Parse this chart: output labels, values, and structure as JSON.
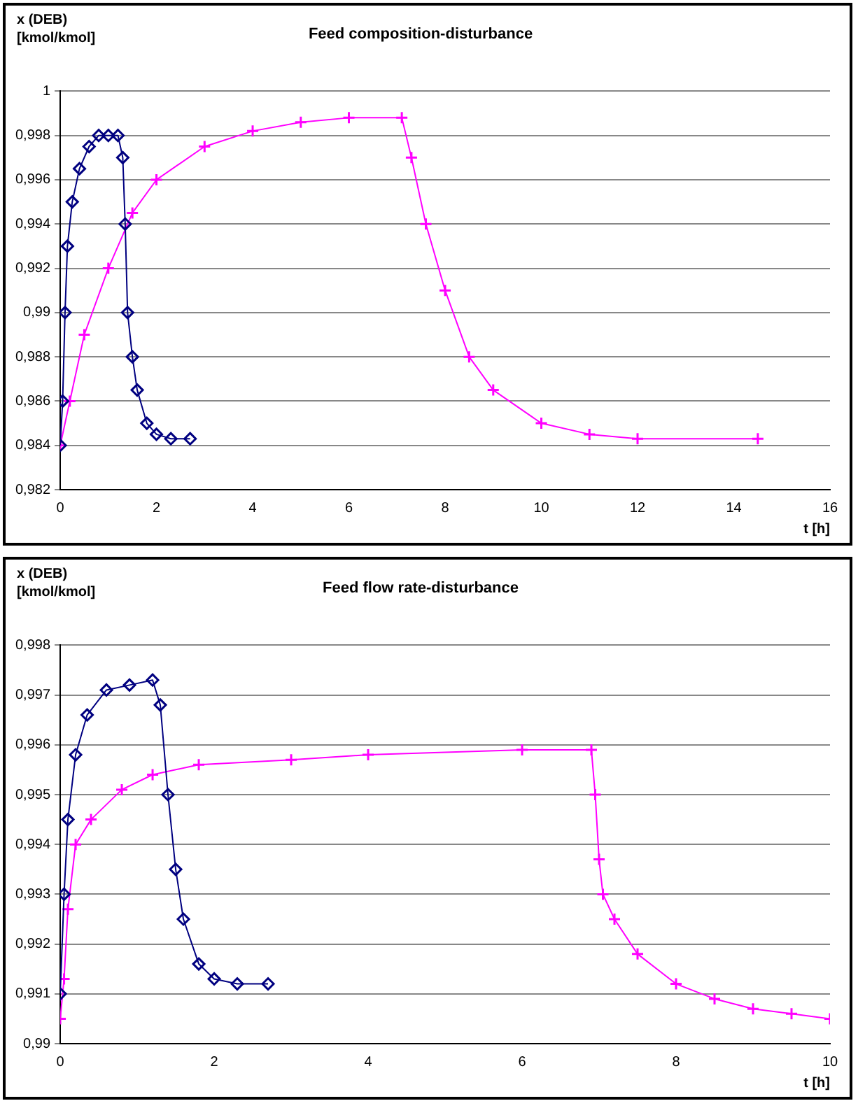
{
  "chart_data": [
    {
      "type": "line",
      "title": "Feed composition-disturbance",
      "ylabel": "x (DEB) [kmol/kmol]",
      "xlabel": "t [h]",
      "grid": "y",
      "line_style": "solid",
      "xlim": [
        0,
        16
      ],
      "xticks": [
        0,
        2,
        4,
        6,
        8,
        10,
        12,
        14,
        16
      ],
      "ylim": [
        0.982,
        1
      ],
      "yticks": [
        {
          "value": 0.982,
          "label": "0,982"
        },
        {
          "value": 0.984,
          "label": "0,984"
        },
        {
          "value": 0.986,
          "label": "0,986"
        },
        {
          "value": 0.988,
          "label": "0,988"
        },
        {
          "value": 0.99,
          "label": "0,99"
        },
        {
          "value": 0.992,
          "label": "0,992"
        },
        {
          "value": 0.994,
          "label": "0,994"
        },
        {
          "value": 0.996,
          "label": "0,996"
        },
        {
          "value": 0.998,
          "label": "0,998"
        },
        1
      ],
      "series": [
        {
          "color": "#000080",
          "marker": "diamond",
          "x": [
            0,
            0.05,
            0.1,
            0.15,
            0.25,
            0.4,
            0.6,
            0.8,
            1.0,
            1.2,
            1.3,
            1.35,
            1.4,
            1.5,
            1.6,
            1.8,
            2.0,
            2.3,
            2.7
          ],
          "values": [
            0.984,
            0.986,
            0.99,
            0.993,
            0.995,
            0.9965,
            0.9975,
            0.998,
            0.998,
            0.998,
            0.997,
            0.994,
            0.99,
            0.988,
            0.9865,
            0.985,
            0.9845,
            0.9843,
            0.9843
          ]
        },
        {
          "color": "#ff00ff",
          "marker": "cross",
          "x": [
            0,
            0.2,
            0.5,
            1,
            1.5,
            2,
            3,
            4,
            5,
            6,
            7.1,
            7.3,
            7.6,
            8,
            8.5,
            9,
            10,
            11,
            12,
            14.5
          ],
          "values": [
            0.984,
            0.986,
            0.989,
            0.992,
            0.9945,
            0.996,
            0.9975,
            0.9982,
            0.9986,
            0.9988,
            0.9988,
            0.997,
            0.994,
            0.991,
            0.988,
            0.9865,
            0.985,
            0.9845,
            0.9843,
            0.9843
          ]
        }
      ]
    },
    {
      "type": "line",
      "title": "Feed flow rate-disturbance",
      "ylabel": "x (DEB) [kmol/kmol]",
      "xlabel": "t [h]",
      "grid": "y",
      "line_style": "solid",
      "xlim": [
        0,
        10
      ],
      "xticks": [
        0,
        2,
        4,
        6,
        8,
        10
      ],
      "ylim": [
        0.99,
        0.998
      ],
      "yticks": [
        {
          "value": 0.99,
          "label": "0,99"
        },
        {
          "value": 0.991,
          "label": "0,991"
        },
        {
          "value": 0.992,
          "label": "0,992"
        },
        {
          "value": 0.993,
          "label": "0,993"
        },
        {
          "value": 0.994,
          "label": "0,994"
        },
        {
          "value": 0.995,
          "label": "0,995"
        },
        {
          "value": 0.996,
          "label": "0,996"
        },
        {
          "value": 0.997,
          "label": "0,997"
        },
        {
          "value": 0.998,
          "label": "0,998"
        }
      ],
      "series": [
        {
          "color": "#000080",
          "marker": "diamond",
          "x": [
            0,
            0.05,
            0.1,
            0.2,
            0.35,
            0.6,
            0.9,
            1.2,
            1.3,
            1.4,
            1.5,
            1.6,
            1.8,
            2.0,
            2.3,
            2.7
          ],
          "values": [
            0.991,
            0.993,
            0.9945,
            0.9958,
            0.9966,
            0.9971,
            0.9972,
            0.9973,
            0.9968,
            0.995,
            0.9935,
            0.9925,
            0.9916,
            0.9913,
            0.9912,
            0.9912
          ]
        },
        {
          "color": "#ff00ff",
          "marker": "cross",
          "x": [
            0,
            0.05,
            0.1,
            0.2,
            0.4,
            0.8,
            1.2,
            1.8,
            3,
            4,
            6,
            6.9,
            6.95,
            7.0,
            7.05,
            7.2,
            7.5,
            8,
            8.5,
            9,
            9.5,
            10
          ],
          "values": [
            0.9905,
            0.9913,
            0.9927,
            0.994,
            0.9945,
            0.9951,
            0.9954,
            0.9956,
            0.9957,
            0.9958,
            0.9959,
            0.9959,
            0.995,
            0.9937,
            0.993,
            0.9925,
            0.9918,
            0.9912,
            0.9909,
            0.9907,
            0.9906,
            0.9905
          ]
        }
      ]
    }
  ]
}
